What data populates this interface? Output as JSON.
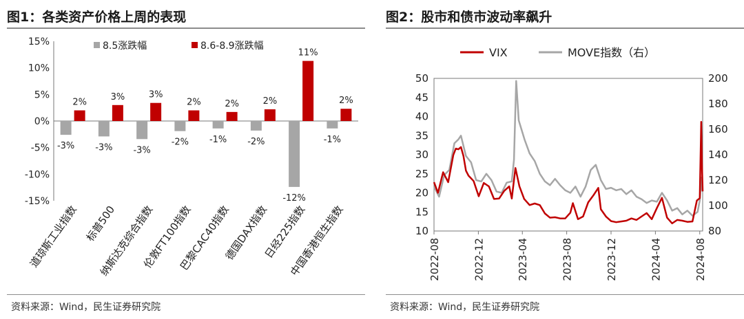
{
  "chart_data": [
    {
      "type": "bar",
      "title": "图1：各类资产价格上周的表现",
      "source": "资料来源：Wind，民生证券研究院",
      "categories": [
        "道琼斯工业指数",
        "标普500",
        "纳斯达克综合指数",
        "伦敦FT100指数",
        "巴黎CAC40指数",
        "德国DAX指数",
        "日经225指数",
        "中国香港恒生指数"
      ],
      "series": [
        {
          "name": "8.5涨跌幅",
          "color": "#a6a6a6",
          "values": [
            -2.6,
            -2.9,
            -3.4,
            -1.9,
            -1.4,
            -1.8,
            -12.4,
            -1.4
          ],
          "labels": [
            "-3%",
            "-3%",
            "-3%",
            "-2%",
            "-1%",
            "-2%",
            "-12%",
            "-1%"
          ]
        },
        {
          "name": "8.6-8.9涨跌幅",
          "color": "#c00000",
          "values": [
            2.0,
            3.0,
            3.4,
            2.0,
            1.7,
            2.2,
            11.3,
            2.3
          ],
          "labels": [
            "2%",
            "3%",
            "3%",
            "2%",
            "2%",
            "2%",
            "11%",
            "2%"
          ]
        }
      ],
      "ylim": [
        -15,
        15
      ],
      "yticks": [
        15,
        10,
        5,
        0,
        -5,
        -10,
        -15
      ],
      "ytick_labels": [
        "15%",
        "10%",
        "5%",
        "0%",
        "-5%",
        "-10%",
        "-15%"
      ],
      "grid": false,
      "legend": "top"
    },
    {
      "type": "line",
      "title": "图2：股市和债市波动率飙升",
      "source": "资料来源：Wind，民生证券研究院",
      "x_ticks": [
        "2022-08",
        "2022-12",
        "2023-04",
        "2023-08",
        "2023-12",
        "2024-04",
        "2024-08"
      ],
      "x_range": [
        "2022-08-01",
        "2024-08-09"
      ],
      "y_left": {
        "lim": [
          10,
          50
        ],
        "ticks": [
          10,
          15,
          20,
          25,
          30,
          35,
          40,
          45,
          50
        ]
      },
      "y_right": {
        "lim": [
          80,
          200
        ],
        "ticks": [
          80,
          100,
          120,
          140,
          160,
          180,
          200
        ]
      },
      "grid": false,
      "legend": "top",
      "series": [
        {
          "name": "VIX",
          "axis": "left",
          "color": "#c00000",
          "points": [
            [
              "2022-08-01",
              22.8
            ],
            [
              "2022-08-12",
              20.0
            ],
            [
              "2022-08-26",
              25.4
            ],
            [
              "2022-09-09",
              22.8
            ],
            [
              "2022-09-23",
              29.9
            ],
            [
              "2022-09-30",
              31.6
            ],
            [
              "2022-10-07",
              31.4
            ],
            [
              "2022-10-14",
              32.0
            ],
            [
              "2022-10-21",
              29.7
            ],
            [
              "2022-10-28",
              25.8
            ],
            [
              "2022-11-04",
              24.5
            ],
            [
              "2022-11-18",
              23.1
            ],
            [
              "2022-12-02",
              19.1
            ],
            [
              "2022-12-16",
              22.6
            ],
            [
              "2022-12-30",
              21.7
            ],
            [
              "2023-01-13",
              18.4
            ],
            [
              "2023-01-27",
              18.5
            ],
            [
              "2023-02-10",
              20.5
            ],
            [
              "2023-02-24",
              21.7
            ],
            [
              "2023-03-03",
              18.5
            ],
            [
              "2023-03-13",
              26.5
            ],
            [
              "2023-03-24",
              21.7
            ],
            [
              "2023-04-06",
              18.4
            ],
            [
              "2023-04-21",
              16.8
            ],
            [
              "2023-05-05",
              17.2
            ],
            [
              "2023-05-19",
              16.8
            ],
            [
              "2023-06-02",
              14.6
            ],
            [
              "2023-06-16",
              13.5
            ],
            [
              "2023-06-30",
              13.6
            ],
            [
              "2023-07-14",
              13.3
            ],
            [
              "2023-07-28",
              13.3
            ],
            [
              "2023-08-11",
              14.8
            ],
            [
              "2023-08-18",
              17.3
            ],
            [
              "2023-09-01",
              13.1
            ],
            [
              "2023-09-15",
              13.8
            ],
            [
              "2023-09-29",
              17.5
            ],
            [
              "2023-10-13",
              19.3
            ],
            [
              "2023-10-27",
              21.3
            ],
            [
              "2023-11-03",
              15.7
            ],
            [
              "2023-11-17",
              13.8
            ],
            [
              "2023-12-01",
              12.6
            ],
            [
              "2023-12-15",
              12.3
            ],
            [
              "2023-12-29",
              12.5
            ],
            [
              "2024-01-12",
              12.7
            ],
            [
              "2024-01-26",
              13.3
            ],
            [
              "2024-02-09",
              12.9
            ],
            [
              "2024-02-23",
              13.8
            ],
            [
              "2024-03-08",
              14.7
            ],
            [
              "2024-03-22",
              13.1
            ],
            [
              "2024-04-05",
              16.0
            ],
            [
              "2024-04-19",
              18.7
            ],
            [
              "2024-05-03",
              13.5
            ],
            [
              "2024-05-17",
              12.0
            ],
            [
              "2024-05-31",
              12.9
            ],
            [
              "2024-06-14",
              12.7
            ],
            [
              "2024-06-28",
              12.4
            ],
            [
              "2024-07-12",
              12.5
            ],
            [
              "2024-07-24",
              18.0
            ],
            [
              "2024-08-01",
              18.6
            ],
            [
              "2024-08-02",
              23.4
            ],
            [
              "2024-08-05",
              38.6
            ],
            [
              "2024-08-07",
              27.9
            ],
            [
              "2024-08-09",
              20.4
            ]
          ]
        },
        {
          "name": "MOVE指数（右）",
          "axis": "right",
          "color": "#a6a6a6",
          "points": [
            [
              "2022-08-01",
              115
            ],
            [
              "2022-08-15",
              107
            ],
            [
              "2022-08-29",
              124
            ],
            [
              "2022-09-12",
              128
            ],
            [
              "2022-09-26",
              149
            ],
            [
              "2022-10-07",
              152
            ],
            [
              "2022-10-14",
              155
            ],
            [
              "2022-10-28",
              139
            ],
            [
              "2022-11-11",
              134
            ],
            [
              "2022-11-25",
              120
            ],
            [
              "2022-12-09",
              119
            ],
            [
              "2022-12-23",
              125
            ],
            [
              "2023-01-06",
              120
            ],
            [
              "2023-01-20",
              111
            ],
            [
              "2023-02-03",
              110
            ],
            [
              "2023-02-17",
              118
            ],
            [
              "2023-03-03",
              119
            ],
            [
              "2023-03-09",
              136
            ],
            [
              "2023-03-15",
              198
            ],
            [
              "2023-03-22",
              167
            ],
            [
              "2023-04-07",
              152
            ],
            [
              "2023-04-21",
              141
            ],
            [
              "2023-05-05",
              135
            ],
            [
              "2023-05-19",
              125
            ],
            [
              "2023-06-02",
              119
            ],
            [
              "2023-06-16",
              116
            ],
            [
              "2023-06-30",
              121
            ],
            [
              "2023-07-14",
              116
            ],
            [
              "2023-07-28",
              112
            ],
            [
              "2023-08-11",
              110
            ],
            [
              "2023-08-25",
              115
            ],
            [
              "2023-09-08",
              107
            ],
            [
              "2023-09-22",
              115
            ],
            [
              "2023-10-06",
              128
            ],
            [
              "2023-10-20",
              132
            ],
            [
              "2023-11-03",
              120
            ],
            [
              "2023-11-17",
              113
            ],
            [
              "2023-12-01",
              114
            ],
            [
              "2023-12-15",
              112
            ],
            [
              "2023-12-29",
              113
            ],
            [
              "2024-01-12",
              109
            ],
            [
              "2024-01-26",
              112
            ],
            [
              "2024-02-09",
              107
            ],
            [
              "2024-02-23",
              105
            ],
            [
              "2024-03-08",
              102
            ],
            [
              "2024-03-22",
              104
            ],
            [
              "2024-04-05",
              103
            ],
            [
              "2024-04-19",
              110
            ],
            [
              "2024-05-03",
              104
            ],
            [
              "2024-05-17",
              96
            ],
            [
              "2024-05-31",
              98
            ],
            [
              "2024-06-14",
              93
            ],
            [
              "2024-06-28",
              96
            ],
            [
              "2024-07-12",
              92
            ],
            [
              "2024-07-26",
              95
            ],
            [
              "2024-08-01",
              104
            ],
            [
              "2024-08-05",
              122
            ],
            [
              "2024-08-07",
              113
            ],
            [
              "2024-08-09",
              111
            ]
          ]
        }
      ]
    }
  ]
}
